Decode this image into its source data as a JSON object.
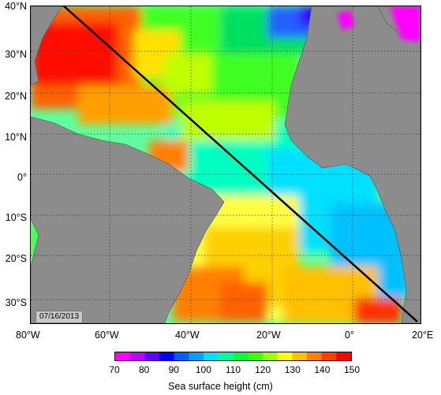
{
  "map": {
    "lat_labels": [
      "40°N",
      "30°N",
      "20°N",
      "10°N",
      "0°",
      "10°S",
      "20°S",
      "30°S"
    ],
    "lon_labels": [
      "80°W",
      "60°W",
      "40°W",
      "20°W",
      "0°",
      "20°E"
    ],
    "date": "07/16/2013",
    "section_line": {
      "from": [
        "72°W",
        "40°N"
      ],
      "to": [
        "15°E",
        "35°S"
      ]
    }
  },
  "colorbar": {
    "ticks": [
      "70",
      "80",
      "90",
      "100",
      "110",
      "120",
      "130",
      "140",
      "150"
    ],
    "label": "Sea surface height (cm)",
    "colors": [
      "#ff00ff",
      "#c000ff",
      "#6000ff",
      "#0000ff",
      "#0060ff",
      "#00a0ff",
      "#00e0ff",
      "#00ffa0",
      "#00ff40",
      "#40ff00",
      "#a0ff00",
      "#ffff00",
      "#ffc000",
      "#ff8000",
      "#ff4000",
      "#ff0000"
    ]
  },
  "colors": {
    "land": "#8c8c8c",
    "grid": "#333333",
    "section_line": "#000000"
  }
}
